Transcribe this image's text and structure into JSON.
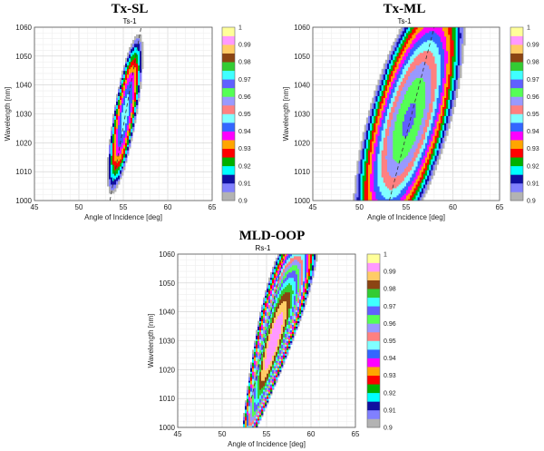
{
  "chart_data": [
    {
      "type": "contour",
      "panel_title": "Tx-SL",
      "title": "Ts-1",
      "xlabel": "Angle of Incidence [deg]",
      "ylabel": "Wavelength [nm]",
      "xlim": [
        45,
        65
      ],
      "ylim": [
        1000,
        1060
      ],
      "xticks": [
        "45",
        "50",
        "55",
        "60",
        "65"
      ],
      "yticks": [
        "1000",
        "1010",
        "1020",
        "1030",
        "1040",
        "1050",
        "1060"
      ],
      "grid": true,
      "optimum_line": {
        "x": [
          53.5,
          57.0
        ],
        "y": [
          1000,
          1060
        ]
      },
      "levels_min": 0.9,
      "levels_max": 1.0,
      "shape": {
        "center_angle": 55.2,
        "center_wavelength": 1030,
        "slope": 0.055,
        "sigma_angle": 1.9,
        "sigma_wavelength": 40,
        "peak": 0.948
      }
    },
    {
      "type": "contour",
      "panel_title": "Tx-ML",
      "title": "Ts-1",
      "xlabel": "Angle of Incidence [deg]",
      "ylabel": "Wavelength [nm]",
      "xlim": [
        45,
        65
      ],
      "ylim": [
        1000,
        1060
      ],
      "xticks": [
        "45",
        "50",
        "55",
        "60",
        "65"
      ],
      "yticks": [
        "1000",
        "1010",
        "1020",
        "1030",
        "1040",
        "1050",
        "1060"
      ],
      "grid": true,
      "optimum_line": {
        "x": [
          53.2,
          58.0
        ],
        "y": [
          1000,
          1060
        ]
      },
      "levels_min": 0.9,
      "levels_max": 1.0,
      "shape": {
        "center_angle": 55.3,
        "center_wavelength": 1028,
        "slope": 0.08,
        "sigma_angle": 5.6,
        "sigma_wavelength": 60,
        "peak": 0.966
      }
    },
    {
      "type": "contour",
      "panel_title": "MLD-OOP",
      "title": "Rs-1",
      "xlabel": "Angle of Incidence [deg]",
      "ylabel": "Wavelength [nm]",
      "xlim": [
        45,
        65
      ],
      "ylim": [
        1000,
        1060
      ],
      "xticks": [
        "45",
        "50",
        "55",
        "60",
        "65"
      ],
      "yticks": [
        "1000",
        "1010",
        "1020",
        "1030",
        "1040",
        "1050",
        "1060"
      ],
      "grid": true,
      "optimum_line": {
        "x": [
          53.3,
          57.0
        ],
        "y": [
          1010,
          1060
        ]
      },
      "levels_min": 0.9,
      "levels_max": 1.0,
      "shape": {
        "center_angle": 55.8,
        "center_wavelength": 1030,
        "slope": 0.09,
        "sigma_angle": 2.2,
        "sigma_wavelength": 28,
        "peak": 0.995,
        "funnel": true
      }
    }
  ],
  "colorbar": {
    "ticks": [
      "0.9",
      "0.91",
      "0.92",
      "0.93",
      "0.94",
      "0.95",
      "0.96",
      "0.97",
      "0.98",
      "0.99",
      "1"
    ],
    "colors": [
      "#b3b3b3",
      "#8080ff",
      "#1010a0",
      "#00ffff",
      "#00b000",
      "#ff0000",
      "#ffa500",
      "#ff00ff",
      "#3366ff",
      "#80ffff",
      "#ff8080",
      "#9999ff",
      "#55ff55",
      "#6060ff",
      "#40ffff",
      "#33cc33",
      "#8b4513",
      "#ffcc66",
      "#ff99ff",
      "#ffff99"
    ]
  }
}
